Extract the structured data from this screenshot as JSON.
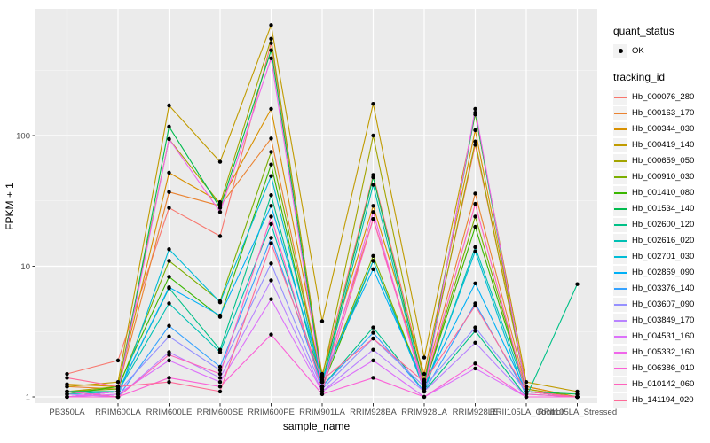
{
  "figure": {
    "background": "#FFFFFF",
    "panel_bg": "#EBEBEB",
    "grid_color": "#FFFFFF",
    "tick_label_color": "#4D4D4D",
    "tick_mark_color": "#333333",
    "point_color": "#000000"
  },
  "axes": {
    "x_title": "sample_name",
    "y_title": "FPKM + 1"
  },
  "legend": {
    "quant_title": "quant_status",
    "quant_items": [
      {
        "label": "OK",
        "marker": "black-point"
      }
    ],
    "tracking_title": "tracking_id"
  },
  "chart_data": {
    "type": "line",
    "title": "",
    "xlabel": "sample_name",
    "ylabel": "FPKM + 1",
    "y_scale": "log10",
    "ylim": [
      0.9,
      900
    ],
    "y_ticks": [
      1,
      10,
      100
    ],
    "y_tick_labels": [
      "1",
      "10",
      "100"
    ],
    "grid": true,
    "legend_position": "right",
    "point_marker": "black-dot (quant_status = OK)",
    "categories": [
      "PB350LA",
      "RRIM600LA",
      "RRIM600LE",
      "RRIM600SE",
      "RRIM600PE",
      "RRIM901LA",
      "RRIM928BA",
      "RRIM928LA",
      "RRIM928LE",
      "RRII105LA_Control",
      "RRII105LA_Stressed"
    ],
    "series": [
      {
        "name": "Hb_000076_280",
        "color": "#F8766D",
        "values": [
          1.5,
          1.9,
          28,
          17,
          510,
          1.45,
          50,
          1.35,
          85,
          1.2,
          1.0
        ]
      },
      {
        "name": "Hb_000163_170",
        "color": "#EA8331",
        "values": [
          1.2,
          1.15,
          37,
          29,
          95,
          1.3,
          23,
          1.3,
          36,
          1.15,
          1.0
        ]
      },
      {
        "name": "Hb_000344_030",
        "color": "#D89000",
        "values": [
          1.25,
          1.2,
          52,
          31,
          160,
          1.5,
          29,
          1.5,
          110,
          1.2,
          1.0
        ]
      },
      {
        "name": "Hb_000419_140",
        "color": "#C09B00",
        "values": [
          1.2,
          1.3,
          170,
          63,
          700,
          3.8,
          175,
          2.0,
          145,
          1.3,
          1.1
        ]
      },
      {
        "name": "Hb_000659_050",
        "color": "#A3A500",
        "values": [
          1.1,
          1.2,
          94,
          30,
          550,
          1.4,
          100,
          1.3,
          90,
          1.15,
          1.0
        ]
      },
      {
        "name": "Hb_000910_030",
        "color": "#7CAE00",
        "values": [
          1.1,
          1.15,
          11,
          5.4,
          75,
          1.3,
          12,
          1.2,
          24,
          1.1,
          1.0
        ]
      },
      {
        "name": "Hb_001410_080",
        "color": "#39B600",
        "values": [
          1.05,
          1.2,
          8.3,
          4.1,
          60,
          1.2,
          11,
          1.2,
          20,
          1.1,
          1.0
        ]
      },
      {
        "name": "Hb_001534_140",
        "color": "#00BB4E",
        "values": [
          1.0,
          1.1,
          117,
          28,
          450,
          1.3,
          48,
          1.2,
          150,
          1.1,
          1.05
        ]
      },
      {
        "name": "Hb_002600_120",
        "color": "#00C087",
        "values": [
          1.1,
          1.1,
          6.8,
          2.3,
          35,
          1.2,
          3.4,
          1.1,
          3.2,
          1.0,
          7.3
        ]
      },
      {
        "name": "Hb_002616_020",
        "color": "#00C0B4",
        "values": [
          1.05,
          1.1,
          5.2,
          2.2,
          21,
          1.2,
          42,
          1.1,
          14,
          1.1,
          1.0
        ]
      },
      {
        "name": "Hb_002701_030",
        "color": "#00BCD6",
        "values": [
          1.1,
          1.0,
          13.5,
          5.3,
          49,
          1.3,
          11,
          1.15,
          13,
          1.0,
          1.0
        ]
      },
      {
        "name": "Hb_002869_090",
        "color": "#00B0F6",
        "values": [
          1.0,
          1.1,
          6.9,
          4.2,
          29,
          1.4,
          9.5,
          1.25,
          7.4,
          1.1,
          1.0
        ]
      },
      {
        "name": "Hb_003376_140",
        "color": "#35A2FF",
        "values": [
          1.1,
          1.0,
          3.5,
          1.7,
          16.5,
          1.2,
          3.1,
          1.1,
          5.2,
          1.05,
          1.0
        ]
      },
      {
        "name": "Hb_003607_090",
        "color": "#9590FF",
        "values": [
          1.0,
          1.1,
          2.9,
          1.6,
          10.5,
          1.15,
          2.8,
          1.2,
          3.4,
          1.1,
          1.0
        ]
      },
      {
        "name": "Hb_003849_170",
        "color": "#B983FF",
        "values": [
          1.05,
          1.0,
          2.2,
          1.4,
          7.8,
          1.1,
          2.3,
          1.1,
          2.6,
          1.0,
          1.0
        ]
      },
      {
        "name": "Hb_004531_160",
        "color": "#DC71FA",
        "values": [
          1.0,
          1.05,
          1.9,
          1.3,
          5.6,
          1.1,
          1.9,
          1.0,
          1.65,
          1.0,
          1.0
        ]
      },
      {
        "name": "Hb_005332_160",
        "color": "#F066EA",
        "values": [
          1.0,
          1.1,
          94,
          26,
          390,
          1.2,
          26,
          1.1,
          160,
          1.1,
          1.0
        ]
      },
      {
        "name": "Hb_006386_010",
        "color": "#FB61D7",
        "values": [
          1.0,
          1.0,
          1.4,
          1.2,
          3.0,
          1.05,
          1.4,
          1.0,
          1.8,
          1.0,
          1.0
        ]
      },
      {
        "name": "Hb_010142_060",
        "color": "#FF62BC",
        "values": [
          1.1,
          1.0,
          2.1,
          1.5,
          24,
          1.1,
          23,
          1.2,
          30,
          1.05,
          1.0
        ]
      },
      {
        "name": "Hb_141194_020",
        "color": "#FF6A98",
        "values": [
          1.4,
          1.2,
          1.3,
          1.1,
          15,
          1.35,
          2.8,
          1.3,
          5.0,
          1.1,
          1.0
        ]
      }
    ]
  }
}
